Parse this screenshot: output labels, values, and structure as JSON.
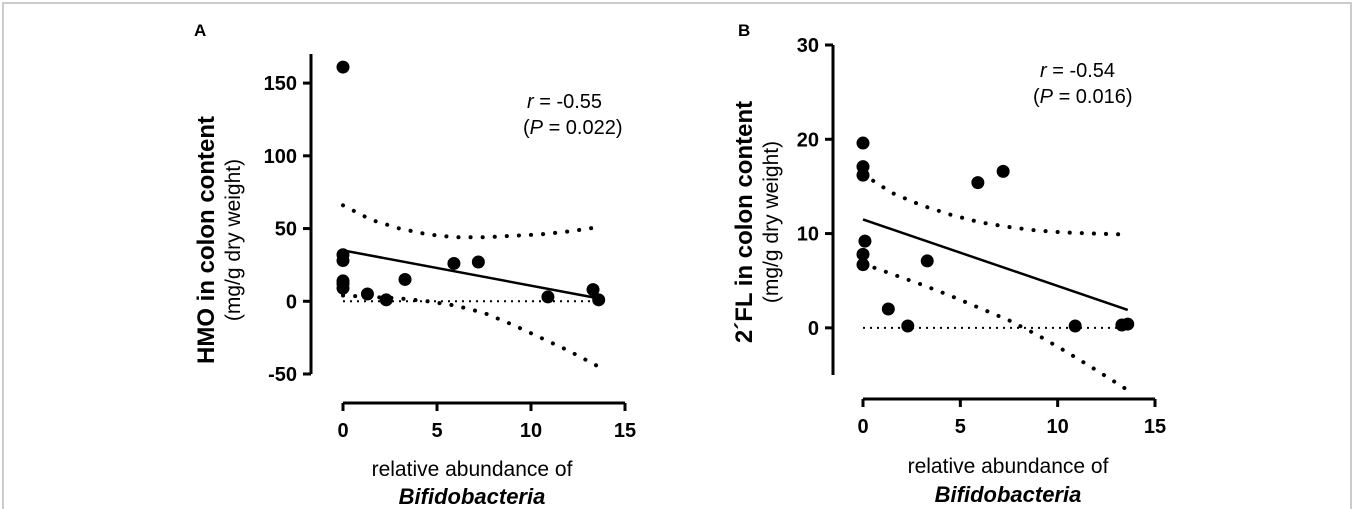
{
  "chart_data": [
    {
      "type": "scatter",
      "panel_label": "A",
      "ylabel_bold": "HMO in colon content",
      "ylabel": "(mg/g dry weight)",
      "xlabel": "relative abundance of",
      "xlabel_italic": "Bifidobacteria",
      "xlim": [
        0,
        15
      ],
      "ylim": [
        -50,
        170
      ],
      "xticks": [
        "0",
        "5",
        "10",
        "15"
      ],
      "yticks": [
        "-50",
        "0",
        "50",
        "100",
        "150"
      ],
      "annotation": {
        "r_symbol": "r",
        "r_text": " = -0.55",
        "p_open": "(",
        "p_symbol": "P",
        "p_text": " = 0.022)"
      },
      "points": [
        {
          "x": 0,
          "y": 161
        },
        {
          "x": 0,
          "y": 32
        },
        {
          "x": 0,
          "y": 28
        },
        {
          "x": 0,
          "y": 14
        },
        {
          "x": 0,
          "y": 12
        },
        {
          "x": 0,
          "y": 9
        },
        {
          "x": 1.3,
          "y": 5
        },
        {
          "x": 2.3,
          "y": 1
        },
        {
          "x": 3.3,
          "y": 15
        },
        {
          "x": 5.9,
          "y": 26
        },
        {
          "x": 7.2,
          "y": 27
        },
        {
          "x": 10.9,
          "y": 3
        },
        {
          "x": 13.3,
          "y": 8
        },
        {
          "x": 13.6,
          "y": 1
        }
      ],
      "regression": {
        "x": [
          0,
          13.6
        ],
        "y": [
          35,
          2
        ]
      },
      "ci_upper": {
        "x": [
          0,
          1.5,
          3,
          4.5,
          6,
          7.5,
          9,
          10.5,
          12,
          13.6
        ],
        "y": [
          66,
          56,
          50,
          46,
          44,
          44,
          45,
          46,
          48,
          51
        ]
      },
      "ci_lower": {
        "x": [
          0,
          1.5,
          3,
          4.5,
          6,
          7.5,
          9,
          10.5,
          12,
          13.6
        ],
        "y": [
          4,
          3,
          2,
          0,
          -3,
          -8,
          -16,
          -25,
          -34,
          -45
        ]
      },
      "zero_line": {
        "y": 0,
        "x": [
          0,
          14
        ]
      }
    },
    {
      "type": "scatter",
      "panel_label": "B",
      "ylabel_bold": "2´FL in colon content",
      "ylabel": "(mg/g dry weight)",
      "xlabel": "relative abundance of",
      "xlabel_italic": "Bifidobacteria",
      "xlim": [
        0,
        15
      ],
      "ylim": [
        -5,
        30
      ],
      "xticks": [
        "0",
        "5",
        "10",
        "15"
      ],
      "yticks": [
        "0",
        "10",
        "20",
        "30"
      ],
      "annotation": {
        "r_symbol": "r",
        "r_text": " = -0.54",
        "p_open": "(",
        "p_symbol": "P",
        "p_text": " = 0.016)"
      },
      "points": [
        {
          "x": 0,
          "y": 19.6
        },
        {
          "x": 0,
          "y": 17.1
        },
        {
          "x": 0,
          "y": 16.2
        },
        {
          "x": 0.1,
          "y": 9.2
        },
        {
          "x": 0,
          "y": 7.8
        },
        {
          "x": 0,
          "y": 6.7
        },
        {
          "x": 1.3,
          "y": 2.0
        },
        {
          "x": 2.3,
          "y": 0.2
        },
        {
          "x": 3.3,
          "y": 7.1
        },
        {
          "x": 5.9,
          "y": 15.4
        },
        {
          "x": 7.2,
          "y": 16.6
        },
        {
          "x": 10.9,
          "y": 0.2
        },
        {
          "x": 13.3,
          "y": 0.3
        },
        {
          "x": 13.6,
          "y": 0.4
        }
      ],
      "regression": {
        "x": [
          0,
          13.6
        ],
        "y": [
          11.5,
          1.9
        ]
      },
      "ci_upper": {
        "x": [
          0,
          1.5,
          3,
          4.5,
          6,
          7.5,
          9,
          10.5,
          12,
          13.4
        ],
        "y": [
          16.3,
          14.3,
          13.0,
          12.0,
          11.2,
          10.7,
          10.3,
          10.1,
          10.0,
          9.9
        ]
      },
      "ci_lower": {
        "x": [
          0,
          1.5,
          3,
          4.5,
          6,
          7.5,
          9,
          10.5,
          12,
          13.6
        ],
        "y": [
          6.8,
          5.7,
          4.6,
          3.4,
          2.1,
          0.8,
          -0.8,
          -2.6,
          -4.5,
          -6.6
        ]
      },
      "zero_line": {
        "y": 0,
        "x": [
          0,
          14
        ]
      }
    }
  ]
}
